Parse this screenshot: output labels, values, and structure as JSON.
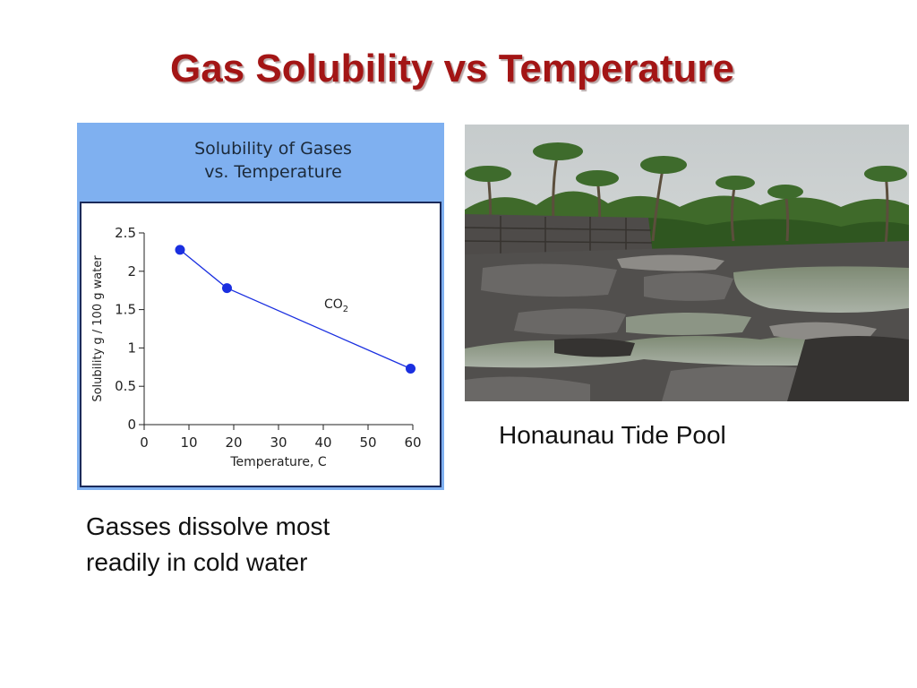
{
  "slide": {
    "title": "Gas Solubility vs Temperature",
    "chart_caption": [
      "Gasses dissolve most",
      "readily in cold water"
    ],
    "photo_caption": "Honaunau Tide Pool"
  },
  "colors": {
    "title": "#a31515",
    "panel": "#7fb0f0",
    "series": "#1a2fe0"
  },
  "chart_data": {
    "type": "line",
    "title": [
      "Solubility of Gases",
      "vs. Temperature"
    ],
    "xlabel": "Temperature, C",
    "ylabel": "Solubility g / 100 g water",
    "xlim": [
      0,
      60
    ],
    "ylim": [
      0,
      2.5
    ],
    "xticks": [
      "0",
      "10",
      "20",
      "30",
      "40",
      "50",
      "60"
    ],
    "yticks": [
      "0",
      "0.5",
      "1",
      "1.5",
      "2",
      "2.5"
    ],
    "grid": false,
    "series": [
      {
        "name": "CO",
        "name_subscript": "2",
        "x": [
          8,
          18.5,
          59.5
        ],
        "y": [
          2.28,
          1.78,
          0.73
        ]
      }
    ]
  }
}
